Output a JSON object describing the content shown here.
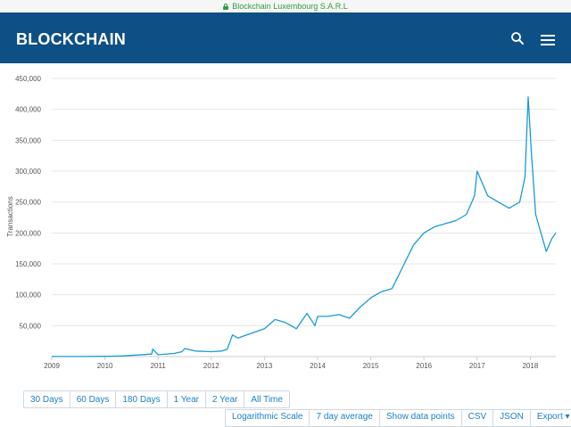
{
  "browser": {
    "site_identity": "Blockchain Luxembourg S.A.R.L"
  },
  "header": {
    "logo": "BLOCKCHAIN",
    "icons": [
      "search-icon",
      "hamburger-menu-icon"
    ]
  },
  "colors": {
    "header_bg": "#0e4f85",
    "series": "#1a9ad8",
    "link": "#1c7fc4",
    "secure": "#2e9d43"
  },
  "range_buttons": [
    "30 Days",
    "60 Days",
    "180 Days",
    "1 Year",
    "2 Year",
    "All Time"
  ],
  "option_buttons": [
    "Logarithmic Scale",
    "7 day average",
    "Show data points",
    "CSV",
    "JSON",
    "Export ▾"
  ],
  "chart_data": {
    "type": "line",
    "title": "",
    "xlabel": "",
    "ylabel": "Transactions",
    "xlim": [
      2009.0,
      2018.48
    ],
    "ylim": [
      0,
      450000
    ],
    "x_ticks": [
      "2009",
      "2010",
      "2011",
      "2012",
      "2013",
      "2014",
      "2015",
      "2016",
      "2017",
      "2018"
    ],
    "y_ticks": [
      "50,000",
      "100,000",
      "150,000",
      "200,000",
      "250,000",
      "300,000",
      "350,000",
      "400,000",
      "450,000"
    ],
    "grid": "horizontal",
    "series": [
      {
        "color": "#1a9ad8",
        "x": [
          2009.0,
          2009.5,
          2010.0,
          2010.3,
          2010.6,
          2010.88,
          2010.9,
          2011.0,
          2011.3,
          2011.45,
          2011.5,
          2011.7,
          2012.0,
          2012.2,
          2012.3,
          2012.4,
          2012.5,
          2012.7,
          2013.0,
          2013.2,
          2013.4,
          2013.6,
          2013.8,
          2013.95,
          2014.0,
          2014.2,
          2014.4,
          2014.6,
          2014.8,
          2015.0,
          2015.2,
          2015.4,
          2015.6,
          2015.8,
          2016.0,
          2016.2,
          2016.4,
          2016.6,
          2016.8,
          2016.95,
          2017.0,
          2017.2,
          2017.4,
          2017.6,
          2017.8,
          2017.9,
          2017.96,
          2018.02,
          2018.1,
          2018.2,
          2018.3,
          2018.4,
          2018.48
        ],
        "y": [
          100,
          200,
          400,
          1000,
          2500,
          4000,
          12000,
          3000,
          5000,
          8000,
          13000,
          9000,
          8000,
          9000,
          12000,
          35000,
          30000,
          36000,
          45000,
          60000,
          55000,
          45000,
          70000,
          50000,
          65000,
          65000,
          68000,
          62000,
          80000,
          95000,
          105000,
          110000,
          145000,
          180000,
          200000,
          210000,
          215000,
          220000,
          230000,
          260000,
          300000,
          260000,
          250000,
          240000,
          250000,
          290000,
          420000,
          330000,
          230000,
          200000,
          170000,
          190000,
          200000
        ]
      }
    ]
  }
}
